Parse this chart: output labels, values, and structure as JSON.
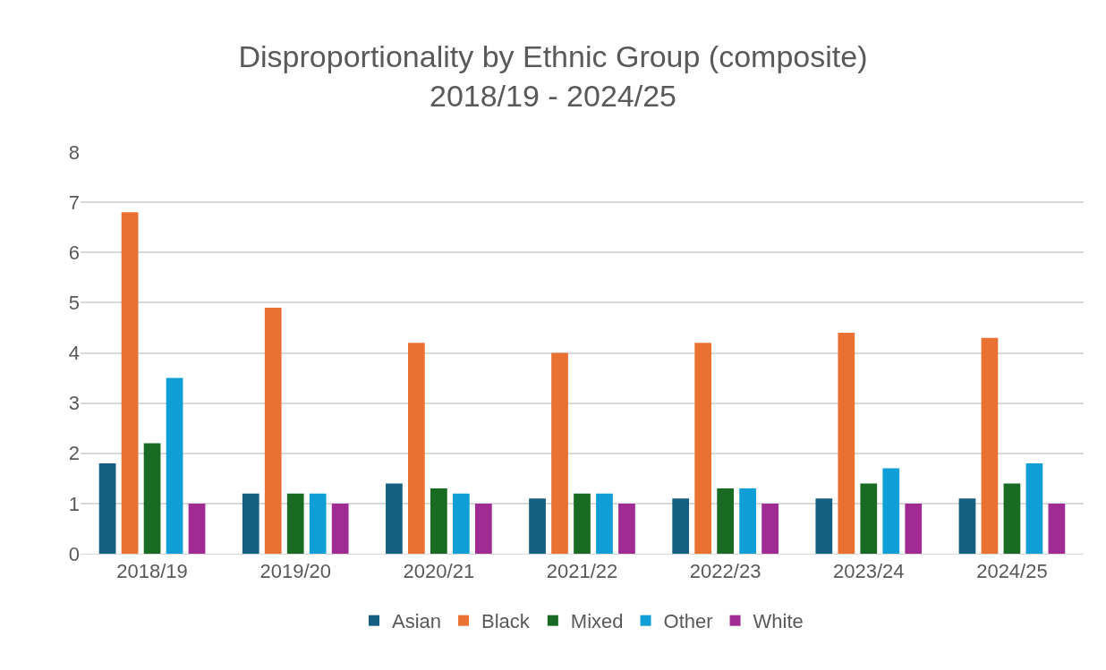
{
  "chart_data": {
    "type": "bar",
    "title": "Disproportionality by Ethnic Group (composite)\n2018/19 - 2024/25",
    "categories": [
      "2018/19",
      "2019/20",
      "2020/21",
      "2021/22",
      "2022/23",
      "2023/24",
      "2024/25"
    ],
    "series": [
      {
        "name": "Asian",
        "color": "#156082",
        "values": [
          1.8,
          1.2,
          1.4,
          1.1,
          1.1,
          1.1,
          1.1
        ]
      },
      {
        "name": "Black",
        "color": "#e97132",
        "values": [
          6.8,
          4.9,
          4.2,
          4.0,
          4.2,
          4.4,
          4.3
        ]
      },
      {
        "name": "Mixed",
        "color": "#196b24",
        "values": [
          2.2,
          1.2,
          1.3,
          1.2,
          1.3,
          1.4,
          1.4
        ]
      },
      {
        "name": "Other",
        "color": "#0f9ed5",
        "values": [
          3.5,
          1.2,
          1.2,
          1.2,
          1.3,
          1.7,
          1.8
        ]
      },
      {
        "name": "White",
        "color": "#a02b93",
        "values": [
          1.0,
          1.0,
          1.0,
          1.0,
          1.0,
          1.0,
          1.0
        ]
      }
    ],
    "ylim": [
      0,
      8
    ],
    "yticks": [
      0,
      1,
      2,
      3,
      4,
      5,
      6,
      7,
      8
    ],
    "grid": "y",
    "legend": "bottom"
  }
}
